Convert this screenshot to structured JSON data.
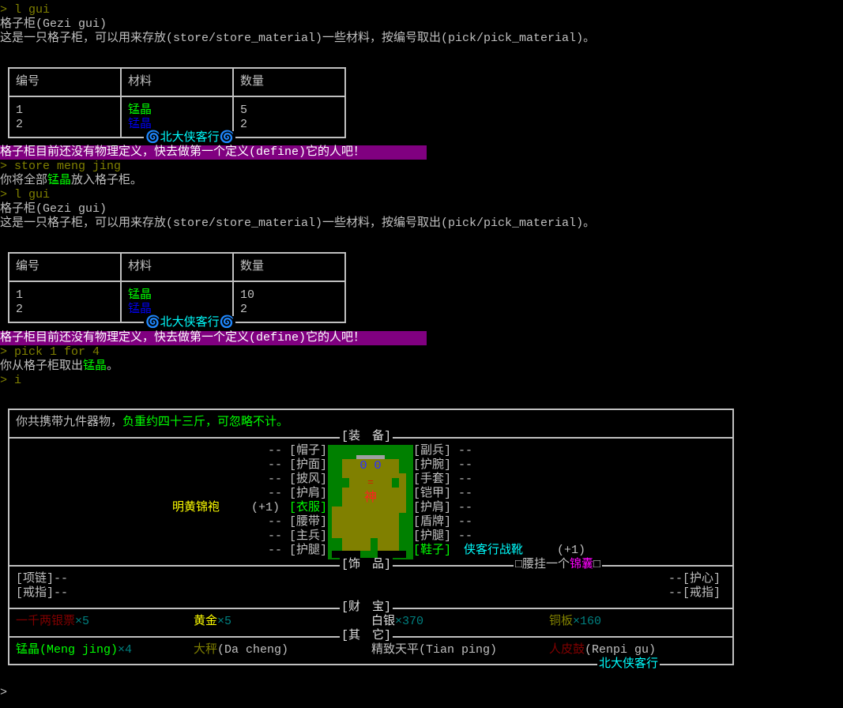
{
  "lines": {
    "cmd1": "> l gui",
    "title1": "格子柜(Gezi gui)",
    "desc1": "这是一只格子柜，可以用来存放(store/store_material)一些材料，按编号取出(pick/pick_material)。",
    "nodef1": "格子柜目前还没有物理定义，快去做第一个定义(define)它的人吧！",
    "cmd2": "> store meng jing",
    "store_pre": "你将全部",
    "store_item": "锰晶",
    "store_post": "放入格子柜。",
    "cmd3": "> l gui",
    "title2": "格子柜(Gezi gui)",
    "desc2": "这是一只格子柜，可以用来存放(store/store_material)一些材料，按编号取出(pick/pick_material)。",
    "nodef2": "格子柜目前还没有物理定义，快去做第一个定义(define)它的人吧！",
    "cmd4": "> pick 1 for 4",
    "pick_pre": "你从格子柜取出",
    "pick_item": "锰晶",
    "pick_post": "。",
    "cmd5": "> i",
    "prompt": ">"
  },
  "table1": {
    "headers": [
      "编号",
      "材料",
      "数量"
    ],
    "rows": [
      [
        "1",
        "锰晶",
        "5"
      ],
      [
        "2",
        "锰晶",
        "2"
      ]
    ],
    "footer": "🌀北大侠客行🌀"
  },
  "table2": {
    "headers": [
      "编号",
      "材料",
      "数量"
    ],
    "rows": [
      [
        "1",
        "锰晶",
        "10"
      ],
      [
        "2",
        "锰晶",
        "2"
      ]
    ],
    "footer": "🌀北大侠客行🌀"
  },
  "inventory": {
    "summary_pre": "你共携带九件器物，",
    "summary_weight": "负重约四十三斤，可忽略不计。",
    "sec_equip": "[装　备]",
    "sec_jewel": "[饰　品]",
    "sec_treasure": "[财　宝]",
    "sec_other": "[其　它]",
    "left_slots": [
      "-- [帽子]",
      "-- [护面]",
      "-- [披风]",
      "-- [护肩]",
      "[衣服]",
      "-- [腰带]",
      "-- [主兵]",
      "-- [护腿]"
    ],
    "right_slots": [
      "[副兵] --",
      "[护腕] --",
      "[手套] --",
      "[铠甲] --",
      "[护肩] --",
      "[盾牌] --",
      "[护腿] --",
      "[鞋子]"
    ],
    "cloth_item": "明黄锦袍",
    "cloth_bonus": "(+1)",
    "shoe_item": "侠客行战靴",
    "shoe_bonus": "(+1)",
    "figure_char": "神",
    "figure_mouth": "=",
    "figure_eyes": "Θ Θ",
    "waist_pre": "□腰挂一个",
    "waist_item": "锦囊",
    "waist_post": "□",
    "jewel_left": [
      "[项链]--",
      "[戒指]--"
    ],
    "jewel_right": [
      "--[护心]",
      "--[戒指]"
    ],
    "treasure": [
      {
        "name": "一千两银票",
        "count": "×5"
      },
      {
        "name": "黄金",
        "count": "×5"
      },
      {
        "name": "白银",
        "count": "×370"
      },
      {
        "name": "铜板",
        "count": "×160"
      }
    ],
    "other": [
      {
        "name": "锰晶",
        "en": "(Meng jing)",
        "count": "×4"
      },
      {
        "name": "大秤",
        "en": "(Da cheng)"
      },
      {
        "name": "精致天平",
        "en": "(Tian ping)"
      },
      {
        "name": "人皮鼓",
        "en": "(Renpi gu)"
      }
    ],
    "footer": "北大侠客行"
  }
}
